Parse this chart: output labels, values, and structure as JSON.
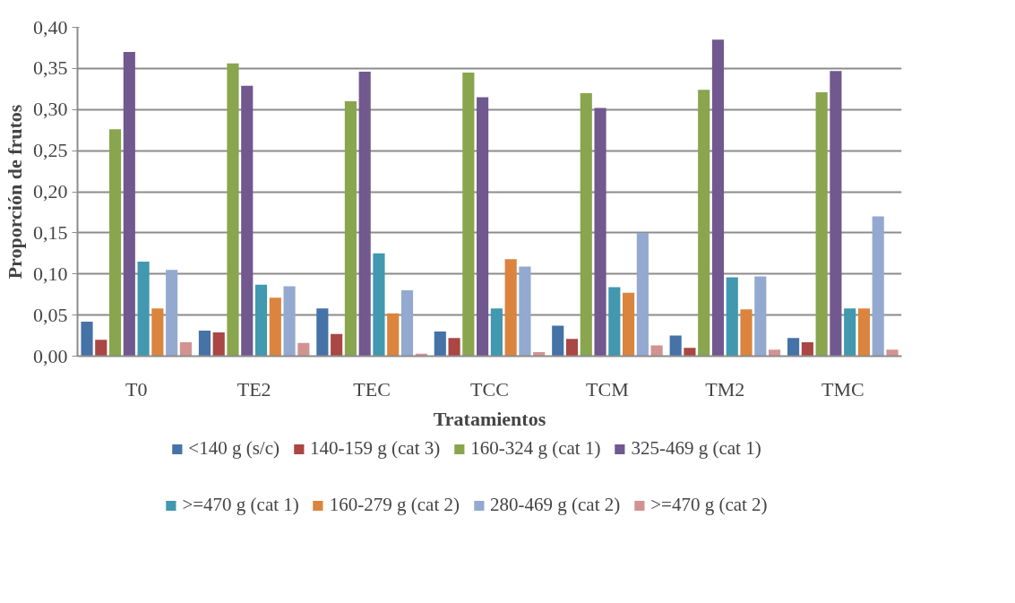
{
  "chart_data": {
    "type": "bar",
    "xlabel": "Tratamientos",
    "ylabel": "Proporción de frutos",
    "categories": [
      "T0",
      "TE2",
      "TEC",
      "TCC",
      "TCM",
      "TM2",
      "TMC"
    ],
    "series": [
      {
        "name": "<140 g (s/c)",
        "color": "#4572a7",
        "values": [
          0.042,
          0.031,
          0.058,
          0.03,
          0.037,
          0.025,
          0.022
        ]
      },
      {
        "name": "140-159 g (cat 3)",
        "color": "#aa4643",
        "values": [
          0.02,
          0.029,
          0.027,
          0.022,
          0.021,
          0.01,
          0.017
        ]
      },
      {
        "name": "160-324 g (cat 1)",
        "color": "#89a54e",
        "values": [
          0.276,
          0.356,
          0.31,
          0.345,
          0.32,
          0.324,
          0.321
        ]
      },
      {
        "name": "325-469 g (cat 1)",
        "color": "#71588f",
        "values": [
          0.37,
          0.329,
          0.346,
          0.315,
          0.302,
          0.385,
          0.347
        ]
      },
      {
        "name": ">=470 g (cat 1)",
        "color": "#4198af",
        "values": [
          0.115,
          0.087,
          0.125,
          0.058,
          0.084,
          0.096,
          0.058
        ]
      },
      {
        "name": "160-279 g (cat 2)",
        "color": "#db843d",
        "values": [
          0.058,
          0.071,
          0.052,
          0.118,
          0.077,
          0.057,
          0.058
        ]
      },
      {
        "name": "280-469 g (cat 2)",
        "color": "#93a9cf",
        "values": [
          0.105,
          0.085,
          0.08,
          0.109,
          0.15,
          0.097,
          0.17
        ]
      },
      {
        "name": ">=470 g (cat 2)",
        "color": "#d19392",
        "values": [
          0.017,
          0.016,
          0.003,
          0.005,
          0.013,
          0.008,
          0.008
        ]
      }
    ],
    "ylim": [
      0,
      0.4
    ],
    "yticks": [
      {
        "value": 0,
        "label": "0,00"
      },
      {
        "value": 0.05,
        "label": "0,05"
      },
      {
        "value": 0.1,
        "label": "0,10"
      },
      {
        "value": 0.15,
        "label": "0,15"
      },
      {
        "value": 0.2,
        "label": "0,20"
      },
      {
        "value": 0.25,
        "label": "0,25"
      },
      {
        "value": 0.3,
        "label": "0,30"
      },
      {
        "value": 0.35,
        "label": "0,35"
      },
      {
        "value": 0.4,
        "label": "0,40"
      }
    ],
    "grid": "y",
    "legend": "bottom"
  }
}
